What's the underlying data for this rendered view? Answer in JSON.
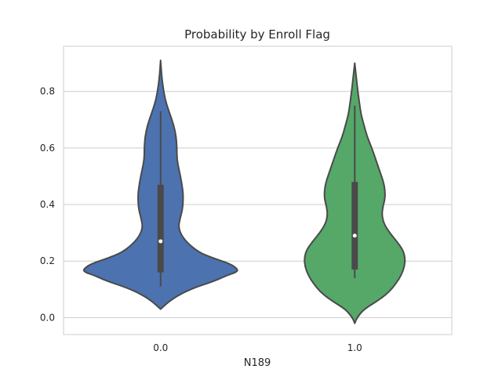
{
  "chart_data": {
    "type": "violin",
    "title": "Probability by Enroll Flag",
    "xlabel": "N189",
    "ylabel": "",
    "categories": [
      "0.0",
      "1.0"
    ],
    "ylim": [
      -0.06,
      0.96
    ],
    "yticks": [
      0.0,
      0.2,
      0.4,
      0.6,
      0.8
    ],
    "ytick_labels": [
      "0.0",
      "0.2",
      "0.4",
      "0.6",
      "0.8"
    ],
    "grid": "horizontal",
    "violins": [
      {
        "category": "0.0",
        "color": "#4c72b0",
        "median": 0.27,
        "q1": 0.16,
        "q3": 0.47,
        "whisker_low": 0.11,
        "whisker_high": 0.73,
        "min": 0.03,
        "max": 0.91,
        "density_profile": [
          [
            0.03,
            0.0
          ],
          [
            0.06,
            0.12
          ],
          [
            0.09,
            0.3
          ],
          [
            0.11,
            0.48
          ],
          [
            0.13,
            0.7
          ],
          [
            0.15,
            0.86
          ],
          [
            0.16,
            0.97
          ],
          [
            0.17,
            1.0
          ],
          [
            0.19,
            0.9
          ],
          [
            0.21,
            0.68
          ],
          [
            0.23,
            0.5
          ],
          [
            0.26,
            0.36
          ],
          [
            0.29,
            0.27
          ],
          [
            0.32,
            0.23
          ],
          [
            0.35,
            0.25
          ],
          [
            0.38,
            0.28
          ],
          [
            0.41,
            0.29
          ],
          [
            0.44,
            0.29
          ],
          [
            0.48,
            0.27
          ],
          [
            0.52,
            0.24
          ],
          [
            0.56,
            0.21
          ],
          [
            0.6,
            0.21
          ],
          [
            0.64,
            0.2
          ],
          [
            0.68,
            0.17
          ],
          [
            0.72,
            0.12
          ],
          [
            0.76,
            0.07
          ],
          [
            0.8,
            0.04
          ],
          [
            0.85,
            0.015
          ],
          [
            0.91,
            0.0
          ]
        ]
      },
      {
        "category": "1.0",
        "color": "#55a868",
        "median": 0.29,
        "q1": 0.17,
        "q3": 0.48,
        "whisker_low": 0.14,
        "whisker_high": 0.75,
        "min": -0.02,
        "max": 0.9,
        "density_profile": [
          [
            -0.02,
            0.0
          ],
          [
            0.0,
            0.03
          ],
          [
            0.03,
            0.12
          ],
          [
            0.06,
            0.3
          ],
          [
            0.09,
            0.44
          ],
          [
            0.12,
            0.53
          ],
          [
            0.15,
            0.6
          ],
          [
            0.18,
            0.64
          ],
          [
            0.21,
            0.65
          ],
          [
            0.24,
            0.62
          ],
          [
            0.27,
            0.54
          ],
          [
            0.3,
            0.45
          ],
          [
            0.33,
            0.38
          ],
          [
            0.36,
            0.35
          ],
          [
            0.39,
            0.36
          ],
          [
            0.42,
            0.39
          ],
          [
            0.45,
            0.39
          ],
          [
            0.48,
            0.37
          ],
          [
            0.52,
            0.32
          ],
          [
            0.56,
            0.27
          ],
          [
            0.6,
            0.22
          ],
          [
            0.64,
            0.16
          ],
          [
            0.68,
            0.12
          ],
          [
            0.72,
            0.08
          ],
          [
            0.76,
            0.06
          ],
          [
            0.8,
            0.04
          ],
          [
            0.85,
            0.02
          ],
          [
            0.9,
            0.0
          ]
        ]
      }
    ]
  }
}
